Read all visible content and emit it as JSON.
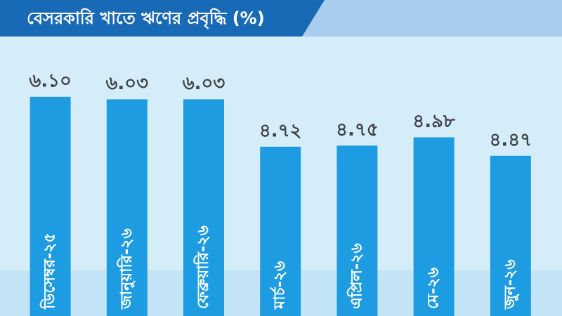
{
  "chart_data": {
    "type": "bar",
    "title": "বেসরকারি খাতে ঋণের প্রবৃদ্ধি (%)",
    "categories": [
      "ডিসেম্বর-২৫",
      "জানুয়ারি-২৬",
      "ফেব্রুয়ারি-২৬",
      "মার্চ-২৬",
      "এপ্রিল-২৬",
      "মে-২৬",
      "জুন-২৬"
    ],
    "values": [
      6.1,
      6.03,
      6.03,
      4.72,
      4.75,
      4.98,
      4.47
    ],
    "value_labels": [
      "৬.১০",
      "৬.০৩",
      "৬.০৩",
      "৪.৭২",
      "৪.৭৫",
      "৪.৯৮",
      "৪.৪৭"
    ],
    "color": "#1e9ce2"
  }
}
